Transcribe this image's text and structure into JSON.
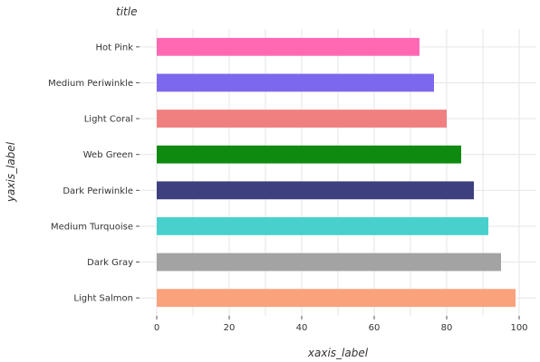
{
  "chart_data": {
    "type": "bar",
    "orientation": "horizontal",
    "title": "title",
    "xlabel": "xaxis_label",
    "ylabel": "yaxis_label",
    "xlim": [
      0,
      100
    ],
    "x_ticks": [
      0,
      20,
      40,
      60,
      80,
      100
    ],
    "grid": true,
    "categories": [
      "Light Salmon",
      "Dark Gray",
      "Medium Turquoise",
      "Dark Periwinkle",
      "Web Green",
      "Light Coral",
      "Medium Periwinkle",
      "Hot Pink"
    ],
    "values": [
      99,
      95,
      91.5,
      87.5,
      84,
      80,
      76.5,
      72.5
    ],
    "colors": [
      "#f9a27c",
      "#a3a3a3",
      "#48d1cc",
      "#3d3f7f",
      "#0f8a10",
      "#f08080",
      "#7b68ee",
      "#ff69b4"
    ]
  }
}
